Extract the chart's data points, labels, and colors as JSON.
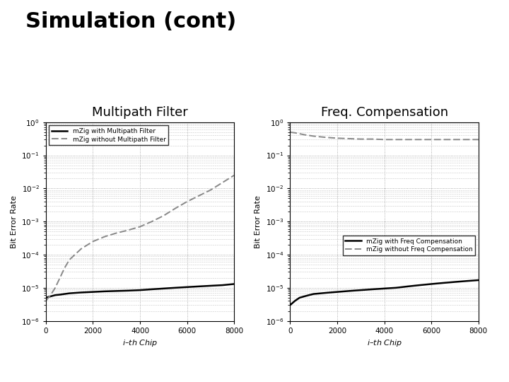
{
  "title": "Simulation (cont)",
  "title_fontsize": 22,
  "title_fontweight": "bold",
  "subplot1_title": "Multipath Filter",
  "subplot2_title": "Freq. Compensation",
  "subtitle_fontsize": 13,
  "xlabel": "$i$–th Chip",
  "ylabel": "Bit Error Rate",
  "xlim": [
    0,
    8000
  ],
  "ylim_log_min": -6,
  "ylim_log_max": 0,
  "xticks": [
    0,
    2000,
    4000,
    6000,
    8000
  ],
  "bg_color": "#ffffff",
  "plot_bg_color": "#ffffff",
  "grid_color": "#999999",
  "legend1": [
    "mZig with Multipath Filter",
    "mZig without Multipath Filter"
  ],
  "legend2": [
    "mZig with Freq Compensation",
    "mZig without Freq Compensation"
  ],
  "line_color_solid": "#000000",
  "line_color_dashed": "#888888",
  "x_data": [
    0,
    200,
    400,
    600,
    800,
    1000,
    1500,
    2000,
    2500,
    3000,
    3500,
    4000,
    4500,
    5000,
    5500,
    6000,
    6500,
    7000,
    7500,
    8000
  ],
  "y1_solid": [
    5e-06,
    5.5e-06,
    6e-06,
    6.2e-06,
    6.5e-06,
    6.8e-06,
    7.2e-06,
    7.5e-06,
    7.8e-06,
    8e-06,
    8.2e-06,
    8.5e-06,
    9e-06,
    9.5e-06,
    1e-05,
    1.05e-05,
    1.1e-05,
    1.15e-05,
    1.2e-05,
    1.3e-05
  ],
  "y1_dashed": [
    4e-06,
    6e-06,
    1e-05,
    2e-05,
    4e-05,
    7e-05,
    0.00015,
    0.00025,
    0.00035,
    0.00045,
    0.00055,
    0.0007,
    0.001,
    0.0015,
    0.0025,
    0.004,
    0.006,
    0.009,
    0.015,
    0.025
  ],
  "y2_solid": [
    3e-06,
    4e-06,
    5e-06,
    5.5e-06,
    6e-06,
    6.5e-06,
    7e-06,
    7.5e-06,
    8e-06,
    8.5e-06,
    9e-06,
    9.5e-06,
    1e-05,
    1.1e-05,
    1.2e-05,
    1.3e-05,
    1.4e-05,
    1.5e-05,
    1.6e-05,
    1.7e-05
  ],
  "y2_dashed": [
    0.5,
    0.48,
    0.45,
    0.42,
    0.4,
    0.38,
    0.35,
    0.33,
    0.32,
    0.31,
    0.31,
    0.3,
    0.3,
    0.3,
    0.3,
    0.3,
    0.3,
    0.3,
    0.3,
    0.3
  ]
}
